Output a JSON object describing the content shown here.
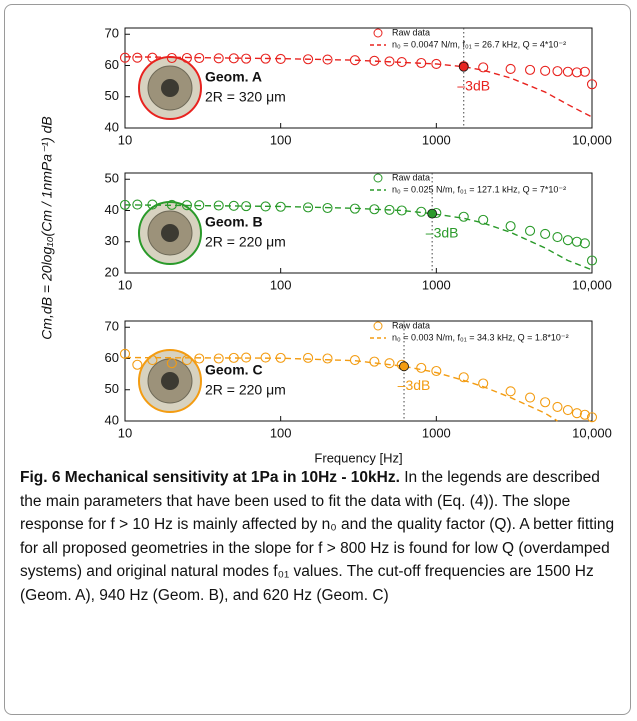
{
  "chart_data": [
    {
      "type": "scatter",
      "xlog": true,
      "xlim": [
        10,
        10000
      ],
      "ylim": [
        40,
        72
      ],
      "xticks": [
        10,
        100,
        1000,
        {
          "value": 10000,
          "label": "10,000"
        }
      ],
      "yticks": [
        40,
        50,
        60,
        70
      ],
      "geometry": "Geom. A",
      "diameter": "2R = 320 μm",
      "cutoff_label": "–3dB",
      "cutoff": {
        "x": 1500,
        "y": 59.6
      },
      "series": [
        {
          "name": "Raw data",
          "color": "#e8231f",
          "style": "markers",
          "x": [
            10,
            12,
            15,
            20,
            25,
            30,
            40,
            50,
            60,
            80,
            100,
            150,
            200,
            300,
            400,
            500,
            600,
            800,
            1000,
            1500,
            2000,
            3000,
            4000,
            5000,
            6000,
            7000,
            8000,
            9000,
            10000
          ],
          "values": [
            62.5,
            62.5,
            62.5,
            62.4,
            62.4,
            62.4,
            62.3,
            62.3,
            62.2,
            62.2,
            62.1,
            62,
            61.9,
            61.7,
            61.5,
            61.3,
            61.1,
            60.8,
            60.5,
            59.8,
            59.4,
            58.9,
            58.6,
            58.3,
            58.2,
            58,
            57.8,
            58,
            54
          ]
        },
        {
          "name": "n₀ = 0.0047 N/m, f₀₁ = 26.7 kHz, Q = 4*10⁻²",
          "color": "#e8231f",
          "style": "dashed",
          "x": [
            10,
            100,
            300,
            600,
            1000,
            1500,
            2000,
            3000,
            5000,
            7000,
            10000
          ],
          "values": [
            62.8,
            62.2,
            61.7,
            61,
            60.5,
            59.6,
            58.5,
            56,
            51.5,
            47.5,
            43.5
          ]
        }
      ]
    },
    {
      "type": "scatter",
      "xlog": true,
      "xlim": [
        10,
        10000
      ],
      "ylim": [
        20,
        52
      ],
      "xticks": [
        10,
        100,
        1000,
        {
          "value": 10000,
          "label": "10,000"
        }
      ],
      "yticks": [
        20,
        30,
        40,
        50
      ],
      "geometry": "Geom. B",
      "diameter": "2R = 220 μm",
      "cutoff_label": "–3dB",
      "cutoff": {
        "x": 940,
        "y": 39
      },
      "series": [
        {
          "name": "Raw data",
          "color": "#2a9a2a",
          "style": "markers",
          "x": [
            10,
            12,
            15,
            20,
            25,
            30,
            40,
            50,
            60,
            80,
            100,
            150,
            200,
            300,
            400,
            500,
            600,
            800,
            1000,
            1500,
            2000,
            3000,
            4000,
            5000,
            6000,
            7000,
            8000,
            9000,
            10000
          ],
          "values": [
            41.8,
            41.9,
            41.9,
            41.8,
            41.7,
            41.7,
            41.6,
            41.5,
            41.4,
            41.3,
            41.2,
            41,
            40.8,
            40.6,
            40.4,
            40.2,
            40,
            39.6,
            39.2,
            38,
            37,
            35,
            33.5,
            32.5,
            31.5,
            30.5,
            30,
            29.5,
            24
          ]
        },
        {
          "name": "n₀ = 0.025 N/m, f₀₁ = 127.1 kHz, Q = 7*10⁻²",
          "color": "#2a9a2a",
          "style": "dashed",
          "x": [
            10,
            100,
            300,
            600,
            940,
            1500,
            2000,
            3000,
            5000,
            7000,
            10000
          ],
          "values": [
            41.8,
            41.3,
            40.7,
            40,
            39,
            37.5,
            36,
            33,
            28,
            24,
            21
          ]
        }
      ]
    },
    {
      "type": "scatter",
      "xlog": true,
      "xlim": [
        10,
        10000
      ],
      "ylim": [
        40,
        72
      ],
      "xticks": [
        10,
        100,
        1000,
        {
          "value": 10000,
          "label": "10,000"
        }
      ],
      "yticks": [
        40,
        50,
        60,
        70
      ],
      "geometry": "Geom. C",
      "diameter": "2R = 220 μm",
      "cutoff_label": "–3dB",
      "cutoff": {
        "x": 620,
        "y": 57.5
      },
      "xlabel": "Frequency [Hz]",
      "series": [
        {
          "name": "Raw data",
          "color": "#f39c12",
          "style": "markers",
          "x": [
            10,
            12,
            15,
            20,
            25,
            30,
            40,
            50,
            60,
            80,
            100,
            150,
            200,
            300,
            400,
            500,
            600,
            800,
            1000,
            1500,
            2000,
            3000,
            4000,
            5000,
            6000,
            7000,
            8000,
            9000,
            10000
          ],
          "values": [
            61.5,
            58,
            59.5,
            58.5,
            59.5,
            60,
            60,
            60.2,
            60.3,
            60.3,
            60.2,
            60.2,
            60,
            59.5,
            59,
            58.5,
            58,
            57,
            56,
            54,
            52,
            49.5,
            47.5,
            46,
            44.5,
            43.5,
            42.5,
            42,
            41.2
          ]
        },
        {
          "name": "n₀ = 0.003 N/m, f₀₁ = 34.3 kHz, Q = 1.8*10⁻²",
          "color": "#f39c12",
          "style": "dashed",
          "x": [
            10,
            100,
            300,
            620,
            1000,
            1500,
            2000,
            3000,
            5000,
            6000
          ],
          "values": [
            60.3,
            60.1,
            59.3,
            57.5,
            55.5,
            53,
            51,
            47.5,
            42.5,
            40
          ]
        }
      ]
    }
  ],
  "ylabel": "Cm,dB = 20log₁₀(Cm / 1nmPa⁻¹) dB",
  "caption": {
    "title": "Fig. 6 Mechanical sensitivity at 1Pa in 10Hz - 10kHz.",
    "text": "In the legends are described the main parameters that have been used to fit the data with (Eq. (4)). The slope response for f > 10 Hz is mainly affected by n₀ and the quality factor (Q). A better fitting for all proposed geometries in the slope for f > 800 Hz is found for low Q (overdamped systems) and original natural modes f₀₁ values. The cut-off frequencies are 1500 Hz (Geom. A), 940 Hz (Geom. B), and 620 Hz (Geom. C)"
  }
}
